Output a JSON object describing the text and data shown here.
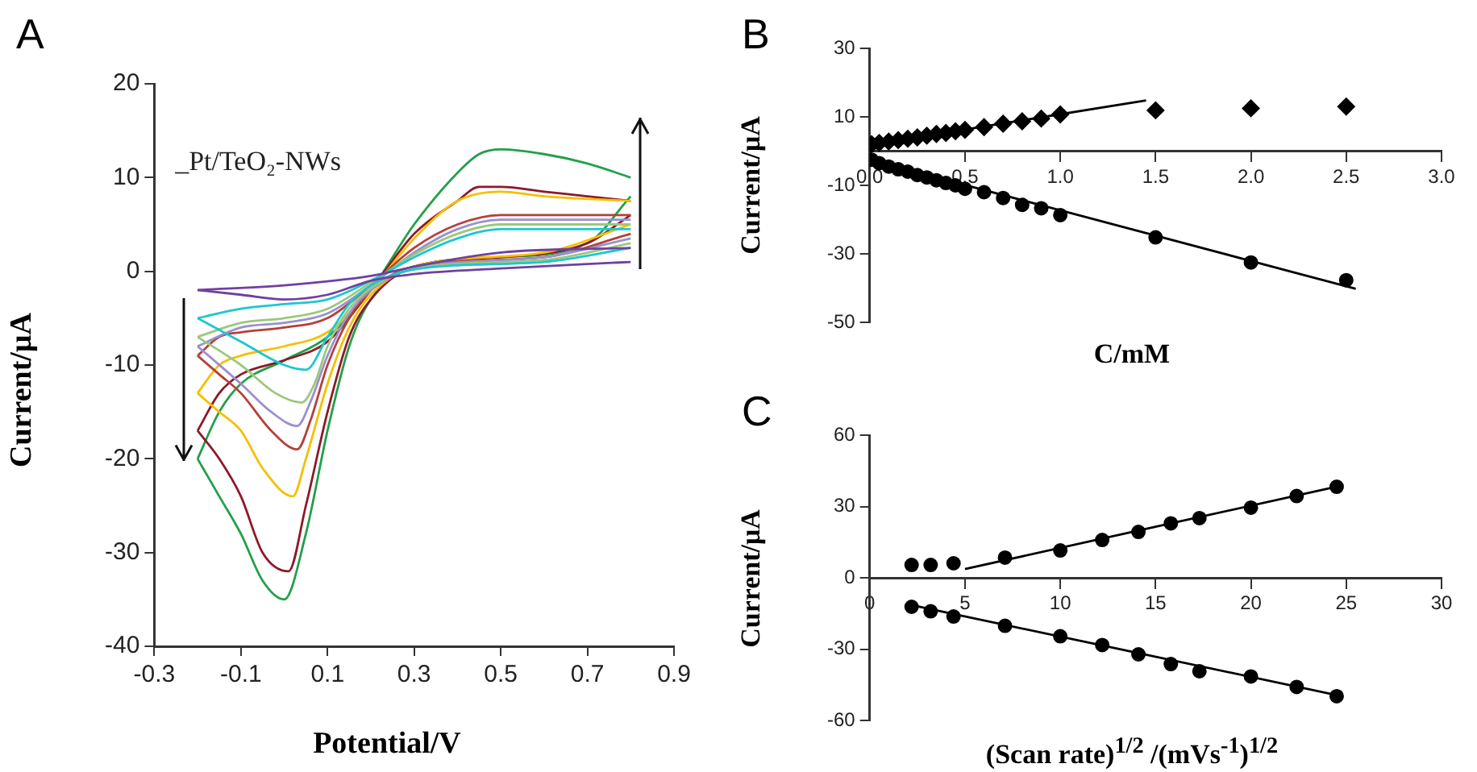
{
  "chart_data": [
    {
      "type": "line",
      "title": "A",
      "xlabel": "Potential/V",
      "ylabel": "Current/μA",
      "xlim": [
        -0.3,
        0.9
      ],
      "ylim": [
        -40,
        20
      ],
      "xticks": [
        -0.3,
        -0.1,
        0.1,
        0.3,
        0.5,
        0.7,
        0.9
      ],
      "yticks": [
        -40,
        -30,
        -20,
        -10,
        0,
        10,
        20
      ],
      "grid": false,
      "marker": "none",
      "line_style": "solid",
      "annotations": [
        "_Pt/TeO₂-NWs"
      ],
      "series": [
        {
          "color": "#7040a0",
          "x": [
            -0.2,
            0,
            0.2,
            0.3,
            0.5,
            0.8
          ],
          "values": [
            -2,
            -1.5,
            -0.5,
            0.5,
            2,
            2.5
          ]
        },
        {
          "color": "#7040a0",
          "x": [
            -0.2,
            -0.1,
            0,
            0.1,
            0.2,
            0.3,
            0.5,
            0.8
          ],
          "values": [
            -2,
            -2.5,
            -3,
            -2.5,
            -1,
            -0.3,
            0.3,
            1
          ]
        },
        {
          "color": "#1cc7d0",
          "x": [
            -0.2,
            -0.1,
            0,
            0.1,
            0.2,
            0.3,
            0.4,
            0.5,
            0.8
          ],
          "values": [
            -5,
            -4,
            -3.5,
            -3,
            -1,
            1.5,
            3.5,
            4.5,
            4.5
          ]
        },
        {
          "color": "#1cc7d0",
          "x": [
            -0.2,
            -0.1,
            0,
            0.05,
            0.1,
            0.15,
            0.2,
            0.3,
            0.6,
            0.8
          ],
          "values": [
            -5,
            -7.5,
            -10,
            -10.5,
            -7,
            -3.5,
            -1.5,
            0.2,
            1,
            2.5
          ]
        },
        {
          "color": "#9bc87a",
          "x": [
            -0.2,
            -0.1,
            0,
            0.1,
            0.2,
            0.3,
            0.4,
            0.5,
            0.8
          ],
          "values": [
            -7,
            -5.5,
            -5,
            -4,
            -1.2,
            1.8,
            4,
            5,
            5
          ]
        },
        {
          "color": "#9bc87a",
          "x": [
            -0.2,
            -0.1,
            -0.02,
            0.04,
            0.07,
            0.1,
            0.15,
            0.2,
            0.3,
            0.6,
            0.8
          ],
          "values": [
            -7,
            -10,
            -13,
            -14,
            -12,
            -8,
            -4,
            -1.8,
            0.3,
            1.2,
            3
          ]
        },
        {
          "color": "#9a8fd0",
          "x": [
            -0.2,
            -0.1,
            0,
            0.1,
            0.2,
            0.3,
            0.4,
            0.5,
            0.8
          ],
          "values": [
            -8,
            -6,
            -5.5,
            -4.5,
            -1.5,
            2,
            4.5,
            5.5,
            5.5
          ]
        },
        {
          "color": "#9a8fd0",
          "x": [
            -0.2,
            -0.1,
            -0.03,
            0.03,
            0.06,
            0.1,
            0.15,
            0.2,
            0.3,
            0.6,
            0.8
          ],
          "values": [
            -8,
            -12,
            -15,
            -16.5,
            -14,
            -9,
            -4.5,
            -2,
            0.3,
            1.5,
            3.5
          ]
        },
        {
          "color": "#b5403a",
          "x": [
            -0.2,
            -0.15,
            -0.1,
            0,
            0.1,
            0.2,
            0.3,
            0.4,
            0.5,
            0.6,
            0.8
          ],
          "values": [
            -9,
            -7,
            -6.5,
            -6,
            -5,
            -1.5,
            2.5,
            5,
            6,
            6,
            6
          ]
        },
        {
          "color": "#b5403a",
          "x": [
            -0.2,
            -0.15,
            -0.1,
            -0.03,
            0.03,
            0.06,
            0.1,
            0.15,
            0.2,
            0.3,
            0.6,
            0.8
          ],
          "values": [
            -9,
            -11,
            -13,
            -17,
            -19,
            -16,
            -10,
            -5,
            -2,
            0.5,
            1.5,
            4
          ]
        },
        {
          "color": "#f5c000",
          "x": [
            -0.2,
            -0.15,
            -0.1,
            0,
            0.1,
            0.2,
            0.3,
            0.4,
            0.5,
            0.6,
            0.8
          ],
          "values": [
            -13,
            -10,
            -9,
            -8,
            -6.5,
            -2,
            3.5,
            7.5,
            8.5,
            8,
            7.5
          ]
        },
        {
          "color": "#f5c000",
          "x": [
            -0.2,
            -0.15,
            -0.1,
            -0.05,
            0.02,
            0.05,
            0.1,
            0.15,
            0.2,
            0.3,
            0.6,
            0.8
          ],
          "values": [
            -13,
            -15,
            -17,
            -21,
            -24,
            -20,
            -12,
            -6,
            -2.5,
            0.5,
            2,
            5
          ]
        },
        {
          "color": "#8b1a2a",
          "x": [
            -0.2,
            -0.15,
            -0.1,
            0,
            0.1,
            0.2,
            0.3,
            0.4,
            0.45,
            0.5,
            0.6,
            0.7,
            0.8
          ],
          "values": [
            -17,
            -13,
            -11,
            -9.5,
            -7.5,
            -2,
            4,
            7.5,
            9,
            9,
            8.5,
            8,
            7.5
          ]
        },
        {
          "color": "#8b1a2a",
          "x": [
            -0.2,
            -0.15,
            -0.1,
            -0.05,
            0.01,
            0.05,
            0.1,
            0.15,
            0.2,
            0.3,
            0.5,
            0.7,
            0.8
          ],
          "values": [
            -17,
            -20,
            -24,
            -30,
            -32,
            -25,
            -15,
            -7,
            -3,
            0.5,
            1.5,
            3,
            6
          ]
        },
        {
          "color": "#22a04a",
          "x": [
            -0.2,
            -0.15,
            -0.1,
            0,
            0.1,
            0.2,
            0.3,
            0.4,
            0.45,
            0.5,
            0.6,
            0.7,
            0.8
          ],
          "values": [
            -20,
            -15,
            -12,
            -9.5,
            -7,
            -2,
            5,
            10.5,
            12.5,
            13,
            12.5,
            11.5,
            10
          ]
        },
        {
          "color": "#22a04a",
          "x": [
            -0.2,
            -0.15,
            -0.1,
            -0.05,
            0,
            0.05,
            0.1,
            0.15,
            0.2,
            0.3,
            0.5,
            0.7,
            0.8
          ],
          "values": [
            -20,
            -24,
            -28,
            -33,
            -35,
            -28,
            -17,
            -8,
            -3,
            0.5,
            1.5,
            3,
            8
          ]
        }
      ]
    },
    {
      "type": "scatter",
      "title": "B",
      "xlabel": "C/mM",
      "ylabel": "Current/μA",
      "xlim": [
        0,
        3
      ],
      "ylim": [
        -50,
        30
      ],
      "xticks": [
        {
          "value": 0,
          "label": "0.0"
        },
        0.5,
        {
          "value": 1,
          "label": "1.0"
        },
        1.5,
        {
          "value": 2,
          "label": "2.0"
        },
        2.5,
        {
          "value": 3,
          "label": "3.0"
        }
      ],
      "yticks": [
        -50,
        -30,
        -10,
        10,
        30
      ],
      "grid": false,
      "series": [
        {
          "type": "scatter",
          "marker": "diamond",
          "color": "#000000",
          "x": [
            0.01,
            0.05,
            0.1,
            0.15,
            0.2,
            0.25,
            0.3,
            0.35,
            0.4,
            0.45,
            0.5,
            0.6,
            0.7,
            0.8,
            0.9,
            1.0,
            1.5,
            2.0,
            2.5
          ],
          "values": [
            2,
            2.4,
            2.8,
            3.2,
            3.6,
            4,
            4.5,
            5,
            5.3,
            5.8,
            6.2,
            7,
            8,
            8.7,
            9.5,
            10.7,
            11.9,
            12.5,
            13
          ]
        },
        {
          "type": "scatter",
          "marker": "circle",
          "color": "#000000",
          "x": [
            0.01,
            0.05,
            0.1,
            0.15,
            0.2,
            0.25,
            0.3,
            0.35,
            0.4,
            0.45,
            0.5,
            0.6,
            0.7,
            0.8,
            0.9,
            1.0,
            1.5,
            2.0,
            2.5
          ],
          "values": [
            -2.5,
            -3.5,
            -4.5,
            -5.3,
            -6,
            -7,
            -7.7,
            -8.5,
            -9.3,
            -10,
            -11,
            -12,
            -13.7,
            -15.7,
            -16.7,
            -18.7,
            -25.2,
            -32.5,
            -37.7
          ]
        },
        {
          "type": "line",
          "marker": "none",
          "color": "#000000",
          "x": [
            0,
            1.45
          ],
          "values": [
            1.8,
            14.8
          ]
        },
        {
          "type": "line",
          "marker": "none",
          "color": "#000000",
          "x": [
            0,
            2.55
          ],
          "values": [
            -2.5,
            -40.2
          ]
        }
      ]
    },
    {
      "type": "scatter",
      "title": "C",
      "xlabel": "(Scan rate)$^{1/2}$ /(mVs$^{-1}$)$^{1/2}$",
      "ylabel": "Current/μA",
      "xlim": [
        0,
        30
      ],
      "ylim": [
        -60,
        60
      ],
      "xticks": [
        0,
        5,
        10,
        15,
        20,
        25,
        30
      ],
      "yticks": [
        -60,
        -30,
        0,
        30,
        60
      ],
      "grid": false,
      "series": [
        {
          "type": "scatter",
          "marker": "circle",
          "color": "#000000",
          "x": [
            2.2,
            3.2,
            4.4,
            7.1,
            10,
            12.2,
            14.1,
            15.8,
            17.3,
            20,
            22.4,
            24.5
          ],
          "values": [
            5.4,
            5.4,
            6.1,
            8.5,
            11.5,
            15.9,
            19.3,
            22.9,
            25.1,
            29.5,
            34.4,
            38.3
          ]
        },
        {
          "type": "scatter",
          "marker": "circle",
          "color": "#000000",
          "x": [
            2.2,
            3.2,
            4.4,
            7.1,
            10,
            12.2,
            14.1,
            15.8,
            17.3,
            20,
            22.4,
            24.5
          ],
          "values": [
            -12.2,
            -14.1,
            -16.3,
            -20.2,
            -24.6,
            -28.3,
            -32.2,
            -36.3,
            -39.3,
            -41.5,
            -45.9,
            -49.8
          ]
        },
        {
          "type": "line",
          "marker": "none",
          "color": "#000000",
          "x": [
            5,
            24.6
          ],
          "values": [
            3.7,
            38.5
          ]
        },
        {
          "type": "line",
          "marker": "none",
          "color": "#000000",
          "x": [
            2.2,
            24.6
          ],
          "values": [
            -11.5,
            -49.5
          ]
        }
      ]
    }
  ]
}
